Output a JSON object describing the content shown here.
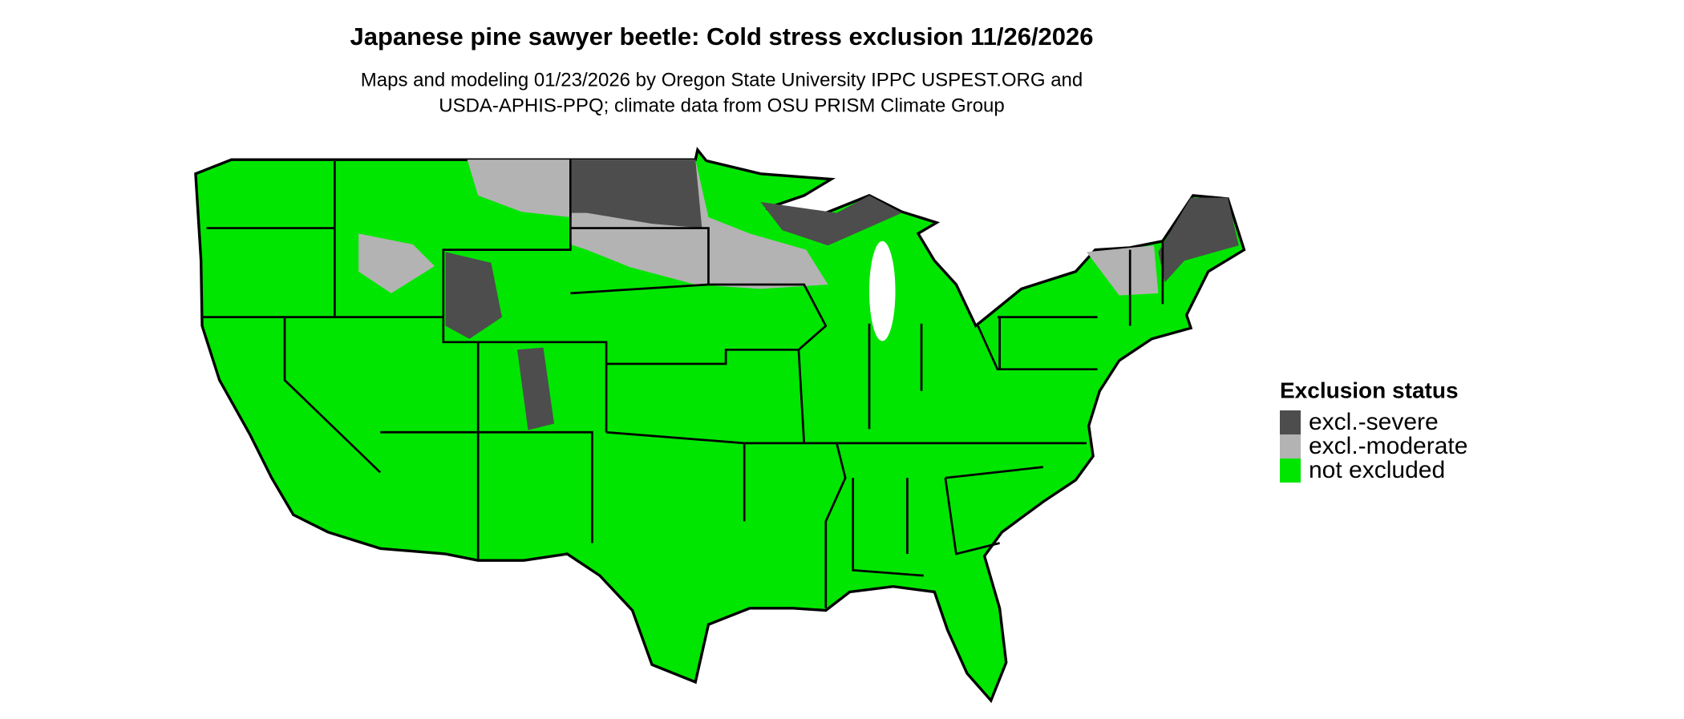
{
  "title": "Japanese pine sawyer beetle: Cold stress exclusion 11/26/2026",
  "subtitle": [
    "Maps and modeling 01/23/2026 by Oregon State University IPPC USPEST.ORG and",
    "USDA-APHIS-PPQ; climate data from OSU PRISM Climate Group"
  ],
  "legend": {
    "title": "Exclusion status",
    "items": [
      {
        "label": "excl.-severe",
        "color": "#4d4d4d"
      },
      {
        "label": "excl.-moderate",
        "color": "#b3b3b3"
      },
      {
        "label": "not excluded",
        "color": "#00e600"
      }
    ]
  }
}
